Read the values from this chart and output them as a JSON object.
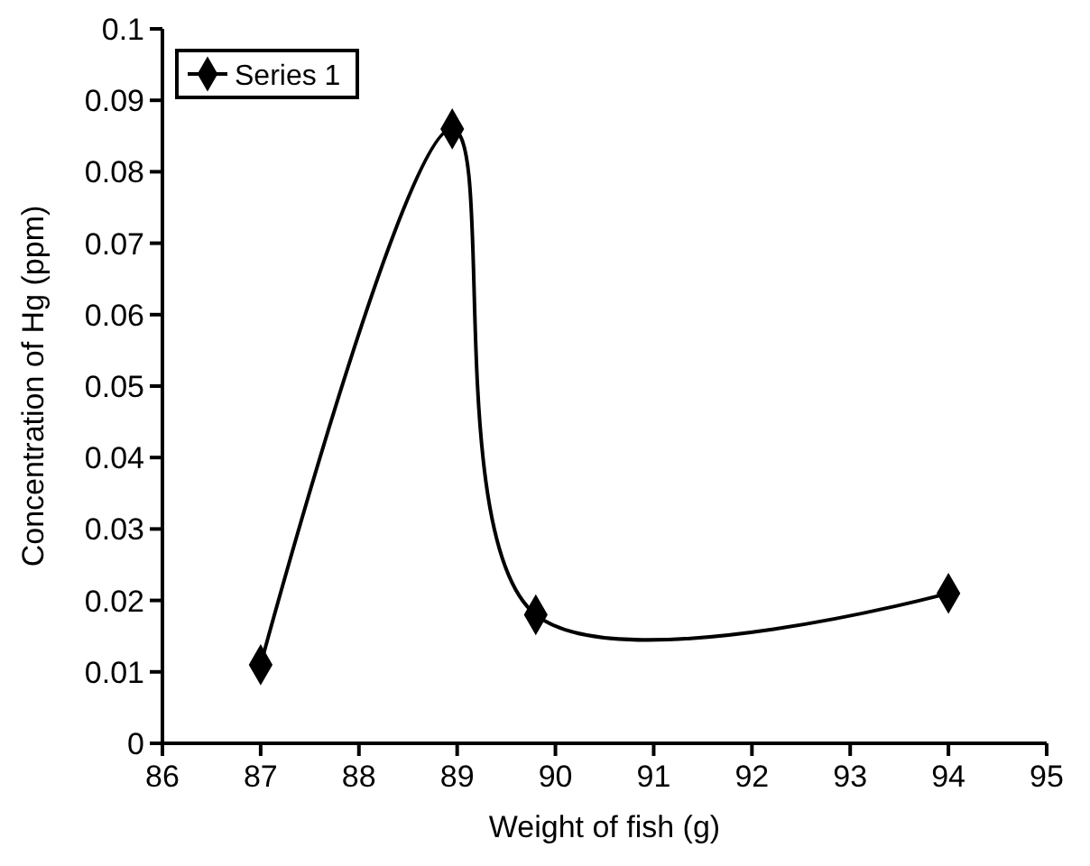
{
  "chart_data": {
    "type": "line",
    "xlabel": "Weight of fish (g)",
    "ylabel": "Concentration of Hg (ppm)",
    "series": [
      {
        "name": "Series 1",
        "color": "#000000",
        "x": [
          87,
          88.95,
          89.8,
          94
        ],
        "values": [
          0.011,
          0.086,
          0.018,
          0.021
        ]
      }
    ],
    "xlim": [
      86,
      95
    ],
    "xticks": [
      86,
      87,
      88,
      89,
      90,
      91,
      92,
      93,
      94,
      95
    ],
    "ylim": [
      0,
      0.1
    ],
    "yticks": [
      0,
      0.01,
      0.02,
      0.03,
      0.04,
      0.05,
      0.06,
      0.07,
      0.08,
      0.09,
      0.1
    ],
    "marker": "diamond",
    "legend": "top left",
    "grid": false
  }
}
